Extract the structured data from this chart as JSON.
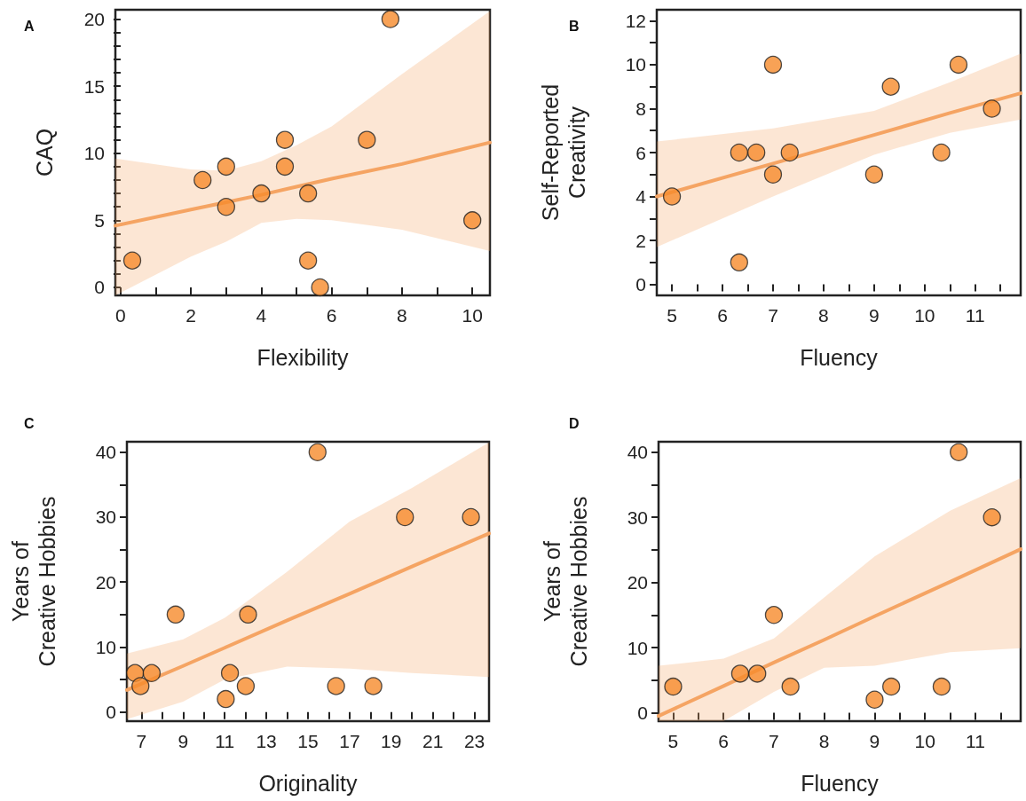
{
  "chart_data": [
    {
      "type": "scatter",
      "title": "A",
      "xlabel": "Flexibility",
      "ylabel": "CAQ",
      "marker": "circle",
      "xlim": [
        -0.15,
        10.5
      ],
      "ylim": [
        -0.6,
        20.7
      ],
      "xticks": [
        0,
        {
          "value": 1,
          "label": null
        },
        2,
        {
          "value": 3,
          "label": null
        },
        4,
        {
          "value": 5,
          "label": null
        },
        6,
        {
          "value": 7,
          "label": null
        },
        8,
        {
          "value": 9,
          "label": null
        },
        10
      ],
      "yticks": [
        0,
        {
          "value": 1,
          "label": null
        },
        {
          "value": 2,
          "label": null
        },
        {
          "value": 3,
          "label": null
        },
        {
          "value": 4,
          "label": null
        },
        5,
        {
          "value": 6,
          "label": null
        },
        {
          "value": 7,
          "label": null
        },
        {
          "value": 8,
          "label": null
        },
        {
          "value": 9,
          "label": null
        },
        10,
        {
          "value": 11,
          "label": null
        },
        {
          "value": 12,
          "label": null
        },
        {
          "value": 13,
          "label": null
        },
        {
          "value": 14,
          "label": null
        },
        15,
        {
          "value": 16,
          "label": null
        },
        {
          "value": 17,
          "label": null
        },
        {
          "value": 18,
          "label": null
        },
        {
          "value": 19,
          "label": null
        },
        20
      ],
      "series": [
        {
          "color": "#f68b2c",
          "x": [
            0.33,
            2.33,
            3,
            3,
            4,
            4.67,
            4.67,
            5.33,
            5.33,
            5.67,
            7,
            7.67,
            10
          ],
          "values": [
            2,
            8,
            9,
            6,
            7,
            11,
            9,
            7,
            2,
            0,
            11,
            20,
            5
          ]
        },
        {
          "type": "line",
          "marker": "none",
          "color": "#f5a463",
          "x": [
            -0.15,
            2,
            3,
            4,
            5,
            6,
            8,
            10.5
          ],
          "values": [
            4.6,
            5.8,
            6.35,
            6.9,
            7.5,
            8.1,
            9.2,
            10.8
          ],
          "lower": [
            -0.6,
            2.3,
            3.4,
            4.8,
            5.1,
            5.0,
            4.3,
            2.7
          ],
          "upper": [
            9.6,
            8.8,
            8.7,
            9.4,
            10.6,
            12.0,
            15.9,
            20.6
          ]
        }
      ]
    },
    {
      "type": "scatter",
      "title": "B",
      "xlabel": "Fluency",
      "ylabel": "Self-Reported\nCreativity",
      "marker": "circle",
      "xlim": [
        4.7,
        11.9
      ],
      "ylim": [
        -0.5,
        12.5
      ],
      "xticks": [
        5,
        {
          "value": 5.5,
          "label": null
        },
        6,
        {
          "value": 6.5,
          "label": null
        },
        7,
        {
          "value": 7.5,
          "label": null
        },
        8,
        {
          "value": 8.5,
          "label": null
        },
        9,
        {
          "value": 9.5,
          "label": null
        },
        10,
        {
          "value": 10.5,
          "label": null
        },
        11,
        {
          "value": 11.5,
          "label": null
        }
      ],
      "yticks": [
        0,
        {
          "value": 1,
          "label": null
        },
        2,
        {
          "value": 3,
          "label": null
        },
        4,
        {
          "value": 5,
          "label": null
        },
        6,
        {
          "value": 7,
          "label": null
        },
        8,
        {
          "value": 9,
          "label": null
        },
        10,
        {
          "value": 11,
          "label": null
        },
        12
      ],
      "series": [
        {
          "color": "#f68b2c",
          "x": [
            5,
            6.33,
            6.33,
            6.67,
            7,
            7,
            7.33,
            9,
            9.33,
            10.33,
            10.67,
            11.33
          ],
          "values": [
            4,
            6,
            1,
            6,
            10,
            5,
            6,
            5,
            9,
            6,
            10,
            8
          ]
        },
        {
          "type": "line",
          "marker": "none",
          "color": "#f5a463",
          "x": [
            4.7,
            7,
            9,
            10.5,
            11.9
          ],
          "values": [
            4.0,
            5.5,
            6.8,
            7.8,
            8.7
          ],
          "lower": [
            1.7,
            4.0,
            5.9,
            6.9,
            7.5
          ],
          "upper": [
            6.5,
            7.1,
            7.9,
            9.2,
            10.5
          ]
        }
      ]
    },
    {
      "type": "scatter",
      "title": "C",
      "xlabel": "Originality",
      "ylabel": "Years of\nCreative Hobbies",
      "marker": "circle",
      "xlim": [
        6.3,
        23.7
      ],
      "ylim": [
        -1.4,
        41.6
      ],
      "xticks": [
        7,
        {
          "value": 8,
          "label": null
        },
        9,
        {
          "value": 10,
          "label": null
        },
        11,
        {
          "value": 12,
          "label": null
        },
        13,
        {
          "value": 14,
          "label": null
        },
        15,
        {
          "value": 16,
          "label": null
        },
        17,
        {
          "value": 18,
          "label": null
        },
        19,
        {
          "value": 20,
          "label": null
        },
        21,
        {
          "value": 22,
          "label": null
        },
        23
      ],
      "yticks": [
        0,
        {
          "value": 5,
          "label": null
        },
        10,
        {
          "value": 15,
          "label": null
        },
        20,
        {
          "value": 25,
          "label": null
        },
        30,
        {
          "value": 35,
          "label": null
        },
        40
      ],
      "series": [
        {
          "color": "#f68b2c",
          "x": [
            6.69,
            6.95,
            7.49,
            8.64,
            11.05,
            11.25,
            12.01,
            12.12,
            15.46,
            16.35,
            18.14,
            19.66,
            22.83
          ],
          "values": [
            6,
            4,
            6,
            15,
            2,
            6,
            4,
            15,
            40,
            4,
            4,
            30,
            30
          ]
        },
        {
          "type": "line",
          "marker": "none",
          "color": "#f5a463",
          "x": [
            6.3,
            9,
            11,
            14,
            17,
            20,
            23.7
          ],
          "values": [
            3.4,
            7.1,
            9.9,
            14.1,
            18.2,
            22.4,
            27.5
          ],
          "lower": [
            -1.1,
            1.6,
            5.0,
            7.0,
            6.7,
            6.0,
            5.4
          ],
          "upper": [
            9.0,
            11.2,
            14.5,
            21.6,
            29.3,
            34.5,
            41.5
          ]
        }
      ]
    },
    {
      "type": "scatter",
      "title": "D",
      "xlabel": "Fluency",
      "ylabel": "Years of\nCreative Hobbies",
      "marker": "circle",
      "xlim": [
        4.71,
        11.9
      ],
      "ylim": [
        -1.3,
        41.6
      ],
      "xticks": [
        5,
        {
          "value": 5.5,
          "label": null
        },
        6,
        {
          "value": 6.5,
          "label": null
        },
        7,
        {
          "value": 7.5,
          "label": null
        },
        8,
        {
          "value": 8.5,
          "label": null
        },
        9,
        {
          "value": 9.5,
          "label": null
        },
        10,
        {
          "value": 10.5,
          "label": null
        },
        11,
        {
          "value": 11.5,
          "label": null
        }
      ],
      "yticks": [
        0,
        {
          "value": 5,
          "label": null
        },
        10,
        {
          "value": 15,
          "label": null
        },
        20,
        {
          "value": 25,
          "label": null
        },
        30,
        {
          "value": 35,
          "label": null
        },
        40
      ],
      "series": [
        {
          "color": "#f68b2c",
          "x": [
            5,
            6.33,
            6.67,
            7,
            7.33,
            9,
            9.33,
            10.33,
            10.67,
            11.33
          ],
          "values": [
            4,
            6,
            6,
            15,
            4,
            2,
            4,
            4,
            40,
            30
          ]
        },
        {
          "type": "line",
          "marker": "none",
          "color": "#f5a463",
          "x": [
            4.71,
            6,
            7,
            8,
            9,
            10.5,
            11.9
          ],
          "values": [
            -0.5,
            4.1,
            7.7,
            11.2,
            14.8,
            20.1,
            25.1
          ],
          "lower": [
            -1.3,
            -1.3,
            3.2,
            6.9,
            7.2,
            9.3,
            9.9
          ],
          "upper": [
            7.2,
            8.3,
            11.4,
            17.7,
            24.0,
            31.0,
            36.0
          ]
        }
      ]
    }
  ]
}
